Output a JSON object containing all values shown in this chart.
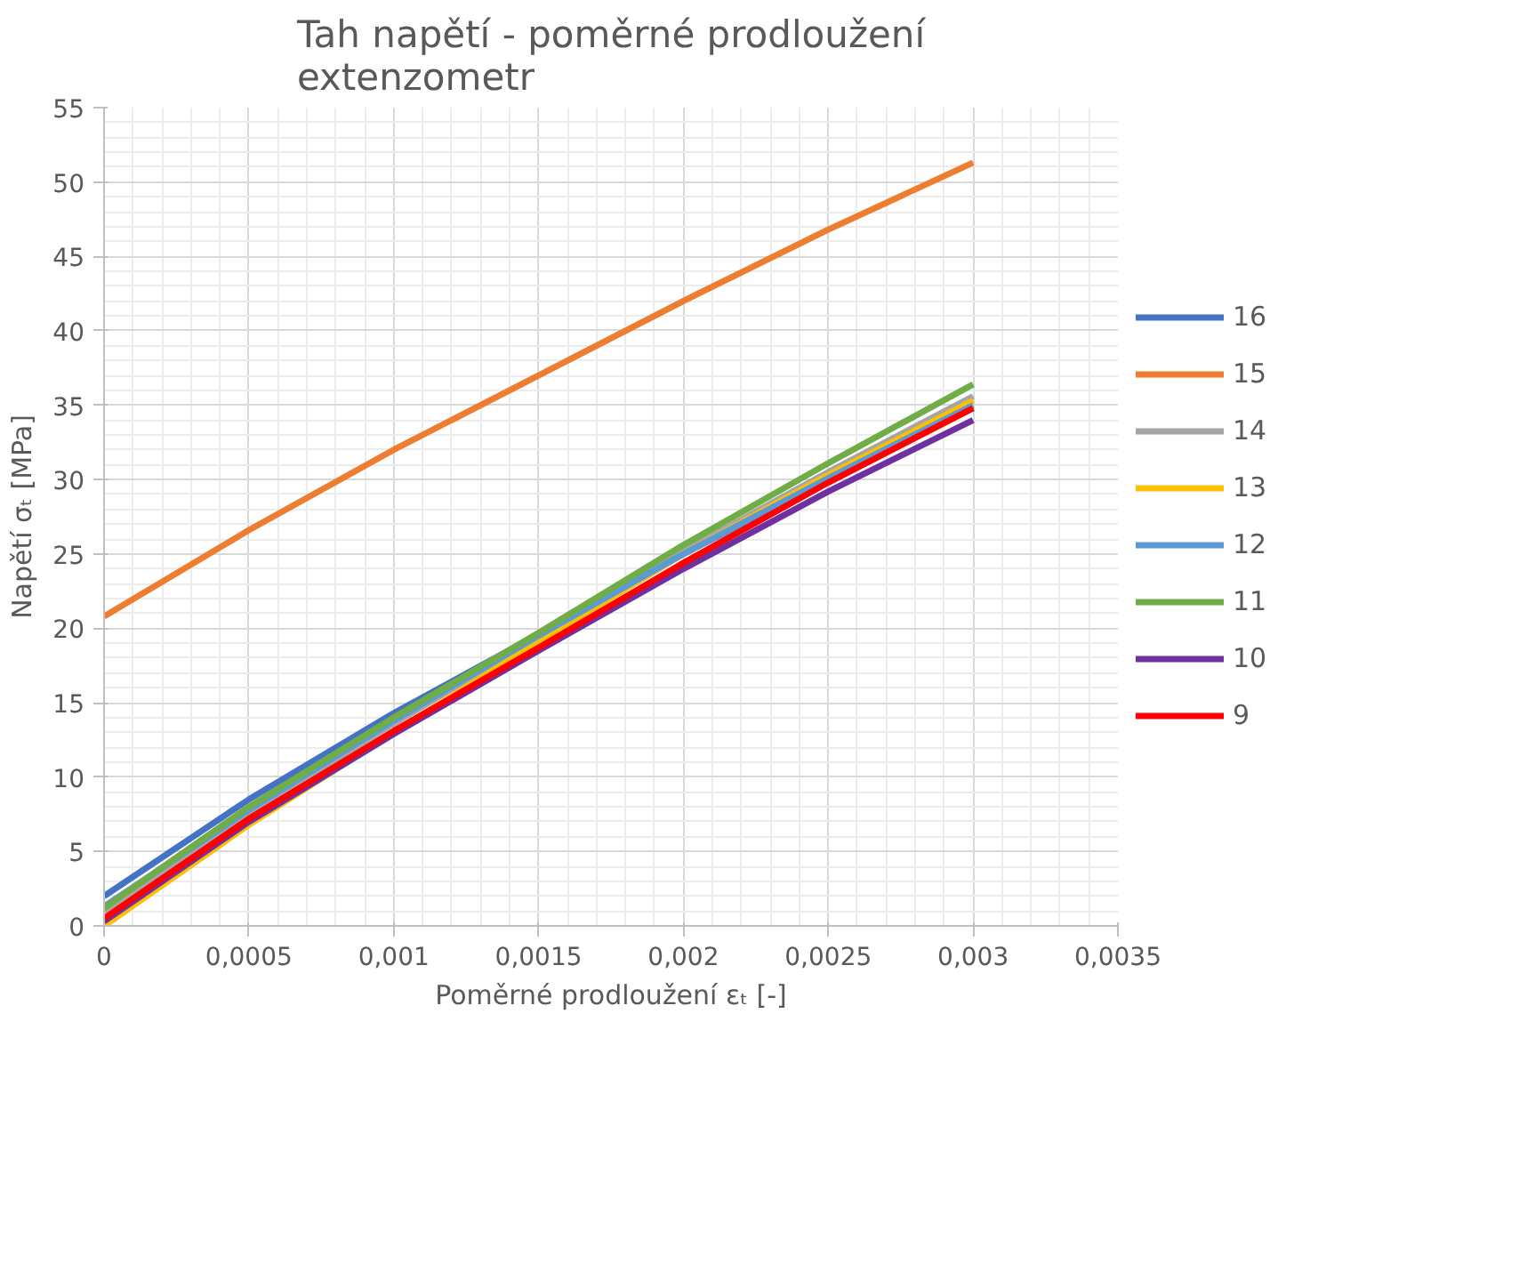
{
  "chart_data": {
    "type": "line",
    "title": "Tah napětí - poměrné prodloužení\nextenzometr",
    "xlabel": "Poměrné prodloužení εₜ [-]",
    "ylabel": "Napětí σₜ [MPa]",
    "x": [
      0,
      0.0005,
      0.001,
      0.0015,
      0.002,
      0.0025,
      0.003
    ],
    "xlim": [
      0,
      0.0035
    ],
    "xticks": [
      0,
      {
        "value": 0.0005,
        "label": "0,0005"
      },
      {
        "value": 0.001,
        "label": "0,001"
      },
      {
        "value": 0.0015,
        "label": "0,0015"
      },
      {
        "value": 0.002,
        "label": "0,002"
      },
      {
        "value": 0.0025,
        "label": "0,0025"
      },
      {
        "value": 0.003,
        "label": "0,003"
      },
      {
        "value": 0.0035,
        "label": "0,0035"
      }
    ],
    "ylim": [
      0,
      55
    ],
    "yticks": [
      0,
      5,
      10,
      15,
      20,
      25,
      30,
      35,
      40,
      45,
      50,
      55
    ],
    "grid": true,
    "legend": "right",
    "marker": "none",
    "line_style": "solid",
    "series": [
      {
        "name": "16",
        "color": "#4472c4",
        "values": [
          2.0,
          8.5,
          14.3,
          19.6,
          25.0,
          30.0,
          34.8
        ]
      },
      {
        "name": "15",
        "color": "#ed7d31",
        "values": [
          20.8,
          26.6,
          32.0,
          37.0,
          42.0,
          46.8,
          51.3
        ]
      },
      {
        "name": "14",
        "color": "#a5a5a5",
        "values": [
          1.0,
          7.6,
          13.6,
          19.4,
          25.2,
          30.5,
          35.6
        ]
      },
      {
        "name": "13",
        "color": "#ffc000",
        "values": [
          0.0,
          6.8,
          13.0,
          19.1,
          25.0,
          30.3,
          35.3
        ]
      },
      {
        "name": "12",
        "color": "#5b9bd5",
        "values": [
          1.3,
          7.8,
          13.8,
          19.5,
          25.0,
          30.1,
          35.0
        ]
      },
      {
        "name": "11",
        "color": "#70ad47",
        "values": [
          1.2,
          8.0,
          14.0,
          19.7,
          25.6,
          31.1,
          36.4
        ]
      },
      {
        "name": "10",
        "color": "#7030a0",
        "values": [
          0.3,
          7.0,
          12.9,
          18.5,
          24.0,
          29.2,
          34.0
        ]
      },
      {
        "name": "9",
        "color": "#ff0000",
        "values": [
          0.5,
          7.2,
          13.1,
          18.7,
          24.4,
          29.8,
          34.8
        ]
      }
    ]
  }
}
